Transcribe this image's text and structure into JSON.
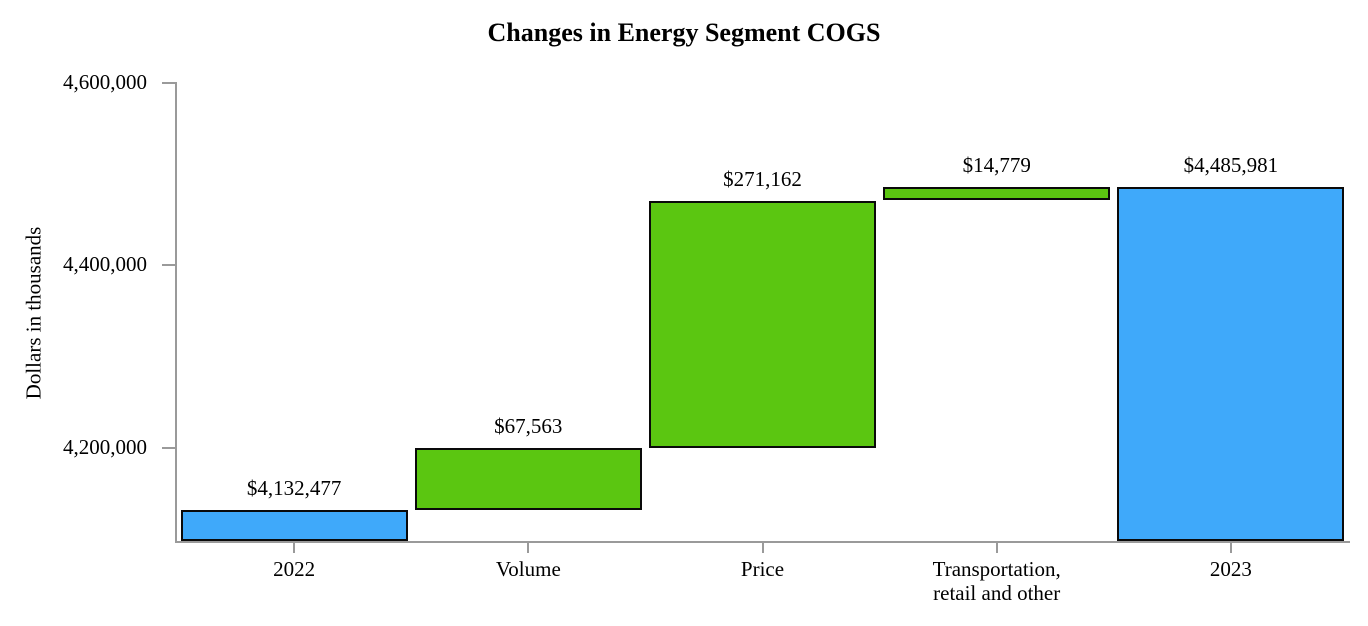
{
  "chart_data": {
    "type": "bar",
    "subtype": "waterfall",
    "title": "Changes in Energy Segment COGS",
    "ylabel": "Dollars in thousands",
    "grid": false,
    "legend": false,
    "categories": [
      "2022",
      "Volume",
      "Price",
      "Transportation,\nretail and other",
      "2023"
    ],
    "values": [
      4132477,
      67563,
      271162,
      14779,
      4485981
    ],
    "ylim": [
      4098000,
      4600000
    ],
    "y_ticks": [
      {
        "label": "4,600,000",
        "value": 4600000
      },
      {
        "label": "4,400,000",
        "value": 4400000
      },
      {
        "label": "4,200,000",
        "value": 4200000
      }
    ],
    "bars": [
      {
        "category": "2022",
        "label": "$4,132,477",
        "value": 4132477,
        "start": null,
        "end": 4132477,
        "role": "total"
      },
      {
        "category": "Volume",
        "label": "$67,563",
        "value": 67563,
        "start": 4132477,
        "end": 4200040,
        "role": "increase"
      },
      {
        "category": "Price",
        "label": "$271,162",
        "value": 271162,
        "start": 4200040,
        "end": 4471202,
        "role": "increase"
      },
      {
        "category": "Transportation,\nretail and other",
        "label": "$14,779",
        "value": 14779,
        "start": 4471202,
        "end": 4485981,
        "role": "increase"
      },
      {
        "category": "2023",
        "label": "$4,485,981",
        "value": 4485981,
        "start": null,
        "end": 4485981,
        "role": "total"
      }
    ],
    "colors": {
      "total": "#3FA9FA",
      "increase": "#5BC611",
      "bar_border": "#0a0a0a",
      "axis": "#9a9a9a",
      "text": "#000000",
      "background": "#ffffff"
    }
  }
}
